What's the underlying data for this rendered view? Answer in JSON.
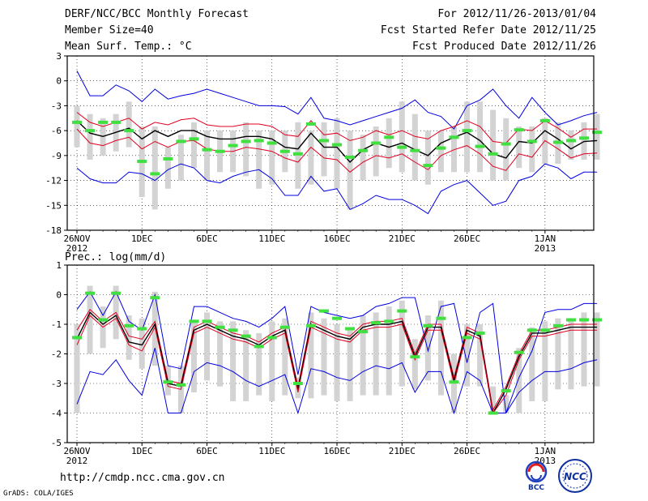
{
  "header": {
    "title": "DERF/NCC/BCC Monthly Forecast",
    "member_size": "Member Size=40",
    "variable": "Mean Surf. Temp.: °C",
    "period": "For 2012/11/26-2013/01/04",
    "started": "Fcst Started Refer Date 2012/11/25",
    "produced": "Fcst Produced Date 2012/11/26"
  },
  "footer": {
    "url": "http://cmdp.ncc.cma.gov.cn",
    "credit": "GrADS: COLA/IGES",
    "logo_left": "BCC",
    "logo_right": "NCC"
  },
  "colors": {
    "mean": "#000000",
    "std": "#e00020",
    "extreme": "#0000e0",
    "box": "#d3d3d3",
    "member": "#40e040",
    "grid": "#000000"
  },
  "chart_data": [
    {
      "type": "line",
      "title": "Mean Surf. Temp.: °C",
      "ylim": [
        -18,
        3
      ],
      "yticks": [
        3,
        0,
        -3,
        -6,
        -9,
        -12,
        -15,
        -18
      ],
      "ytick_labels": [
        "3",
        "0",
        "-3",
        "-6",
        "-9",
        "-12",
        "-15",
        "-18"
      ],
      "xlim": [
        0,
        39
      ],
      "xticks": [
        {
          "x": 0,
          "label": "26NOV",
          "sub": "2012"
        },
        {
          "x": 5,
          "label": "1DEC"
        },
        {
          "x": 10,
          "label": "6DEC"
        },
        {
          "x": 15,
          "label": "11DEC"
        },
        {
          "x": 20,
          "label": "16DEC"
        },
        {
          "x": 25,
          "label": "21DEC"
        },
        {
          "x": 30,
          "label": "26DEC"
        },
        {
          "x": 36,
          "label": "1JAN",
          "sub": "2013"
        }
      ],
      "series": [
        {
          "name": "max",
          "role": "extreme",
          "values": [
            1.2,
            -1.8,
            -1.8,
            -0.5,
            -1.2,
            -2.5,
            -1.0,
            -2.2,
            -1.8,
            -1.5,
            -1.0,
            -1.5,
            -2.0,
            -2.5,
            -3.0,
            -3.0,
            -3.1,
            -4.0,
            -2.0,
            -4.5,
            -4.8,
            -5.3,
            -4.8,
            -4.3,
            -3.8,
            -3.3,
            -2.3,
            -3.8,
            -4.3,
            -5.8,
            -3.0,
            -2.3,
            -1.0,
            -3.0,
            -4.5,
            -2.0,
            -3.8,
            -5.3,
            -4.8,
            -4.2,
            -3.8
          ]
        },
        {
          "name": "mean_plus_std",
          "role": "std",
          "values": [
            -3.8,
            -5.0,
            -5.5,
            -5.0,
            -4.5,
            -5.8,
            -5.0,
            -5.3,
            -4.7,
            -4.5,
            -5.3,
            -5.5,
            -5.5,
            -5.2,
            -5.2,
            -5.5,
            -6.5,
            -6.7,
            -4.8,
            -6.5,
            -6.3,
            -7.2,
            -6.8,
            -6.0,
            -6.5,
            -6.0,
            -6.7,
            -7.0,
            -6.0,
            -5.5,
            -4.8,
            -5.5,
            -7.3,
            -7.5,
            -5.8,
            -6.0,
            -4.8,
            -5.7,
            -6.8,
            -5.8,
            -5.8
          ]
        },
        {
          "name": "mean",
          "role": "mean",
          "values": [
            -4.8,
            -6.3,
            -6.7,
            -6.2,
            -5.7,
            -7.0,
            -6.0,
            -6.7,
            -6.0,
            -6.0,
            -6.7,
            -7.0,
            -7.0,
            -6.7,
            -6.7,
            -7.0,
            -8.0,
            -8.2,
            -6.3,
            -8.0,
            -8.0,
            -9.8,
            -8.3,
            -7.5,
            -8.0,
            -7.5,
            -8.3,
            -9.0,
            -7.5,
            -6.8,
            -6.2,
            -7.2,
            -8.8,
            -9.3,
            -7.3,
            -7.5,
            -6.0,
            -7.0,
            -8.2,
            -7.3,
            -7.2
          ]
        },
        {
          "name": "mean_minus_std",
          "role": "std",
          "values": [
            -5.8,
            -7.5,
            -7.8,
            -7.2,
            -6.8,
            -8.2,
            -7.3,
            -8.0,
            -7.3,
            -7.2,
            -8.2,
            -8.5,
            -8.5,
            -8.0,
            -8.2,
            -8.5,
            -9.3,
            -9.8,
            -8.0,
            -9.3,
            -9.5,
            -11.0,
            -9.8,
            -9.0,
            -9.3,
            -8.8,
            -9.8,
            -10.7,
            -9.0,
            -8.3,
            -7.8,
            -8.8,
            -10.3,
            -10.8,
            -8.8,
            -9.2,
            -7.2,
            -8.2,
            -9.3,
            -8.8,
            -8.7
          ]
        },
        {
          "name": "min",
          "role": "extreme",
          "values": [
            -10.5,
            -11.8,
            -12.3,
            -12.3,
            -11.0,
            -11.2,
            -12.0,
            -10.7,
            -10.0,
            -10.5,
            -12.0,
            -12.3,
            -11.5,
            -11.0,
            -10.7,
            -11.8,
            -13.8,
            -13.8,
            -11.5,
            -13.3,
            -13.0,
            -15.5,
            -14.8,
            -13.8,
            -14.3,
            -14.3,
            -15.0,
            -16.0,
            -13.3,
            -12.5,
            -12.0,
            -13.5,
            -15.0,
            -14.5,
            -12.0,
            -11.5,
            -10.0,
            -10.5,
            -11.8,
            -11.0,
            -11.0
          ]
        }
      ],
      "boxes": [
        [
          -8,
          -3
        ],
        [
          -9.5,
          -4
        ],
        [
          -9,
          -4.5
        ],
        [
          -8.5,
          -4
        ],
        [
          -8,
          -2.5
        ],
        [
          -14,
          -5.5
        ],
        [
          -15.5,
          -5.5
        ],
        [
          -13,
          -8
        ],
        [
          -12,
          -6.5
        ],
        [
          -10.5,
          -5
        ],
        [
          -12,
          -6
        ],
        [
          -11,
          -6
        ],
        [
          -11,
          -6
        ],
        [
          -11.5,
          -5
        ],
        [
          -13,
          -6
        ],
        [
          -12.5,
          -6
        ],
        [
          -11,
          -6
        ],
        [
          -13,
          -5
        ],
        [
          -12.5,
          -6
        ],
        [
          -11.5,
          -5
        ],
        [
          -13,
          -4.5
        ],
        [
          -15.5,
          -6
        ],
        [
          -12,
          -6.5
        ],
        [
          -11.5,
          -5.5
        ],
        [
          -10.5,
          -4.5
        ],
        [
          -11,
          -2.5
        ],
        [
          -12,
          -4
        ],
        [
          -12.5,
          -6
        ],
        [
          -11,
          -6
        ],
        [
          -11,
          -5.5
        ],
        [
          -11,
          -2.5
        ],
        [
          -11,
          -2.5
        ],
        [
          -12,
          -3.5
        ],
        [
          -12,
          -4.5
        ],
        [
          -10.5,
          -5.5
        ],
        [
          -11,
          -5.5
        ],
        [
          -10,
          -4.5
        ],
        [
          -10,
          -5
        ],
        [
          -9.5,
          -6
        ],
        [
          -9.5,
          -5
        ],
        [
          -9.5,
          -4
        ]
      ],
      "members": [
        -5,
        -6,
        -5,
        -5,
        -6,
        -9.7,
        -11.2,
        -9.4,
        -7.3,
        -7,
        -8.3,
        -8.5,
        -7.8,
        -7.3,
        -7.2,
        -7.5,
        -8.5,
        -8.8,
        -5.2,
        -7.2,
        -7.7,
        -9.2,
        -8.4,
        -7.5,
        -6.8,
        -8,
        -8.4,
        -10.2,
        -8.1,
        -6.8,
        -6,
        -7.9,
        -8.8,
        -7.6,
        -5.9,
        -7.3,
        -4.8,
        -7.4,
        -7.2,
        -6.9,
        -6.2
      ]
    },
    {
      "type": "line",
      "title": "Prec.: log(mm/d)",
      "ylim": [
        -5,
        1
      ],
      "yticks": [
        1,
        0,
        -1,
        -2,
        -3,
        -4,
        -5
      ],
      "ytick_labels": [
        "1",
        "0",
        "-1",
        "-2",
        "-3",
        "-4",
        "-5"
      ],
      "xlim": [
        0,
        39
      ],
      "xticks": [
        {
          "x": 0,
          "label": "26NOV",
          "sub": "2012"
        },
        {
          "x": 5,
          "label": "1DEC"
        },
        {
          "x": 10,
          "label": "6DEC"
        },
        {
          "x": 15,
          "label": "11DEC"
        },
        {
          "x": 20,
          "label": "16DEC"
        },
        {
          "x": 25,
          "label": "21DEC"
        },
        {
          "x": 30,
          "label": "26DEC"
        },
        {
          "x": 36,
          "label": "1JAN",
          "sub": "2013"
        }
      ],
      "series": [
        {
          "name": "max",
          "role": "extreme",
          "values": [
            -0.5,
            0.1,
            -0.7,
            0.1,
            -0.9,
            -1.2,
            0.0,
            -2.4,
            -2.5,
            -0.4,
            -0.4,
            -0.6,
            -0.8,
            -0.9,
            -1.1,
            -0.8,
            -0.4,
            -2.7,
            -0.4,
            -0.6,
            -0.7,
            -0.8,
            -0.7,
            -0.4,
            -0.3,
            -0.1,
            -0.1,
            -1.9,
            -0.4,
            -0.3,
            -2.3,
            -0.6,
            -0.3,
            -4.0,
            -2.8,
            -1.9,
            -0.6,
            -0.5,
            -0.5,
            -0.3,
            -0.3
          ]
        },
        {
          "name": "mean_plus_std",
          "role": "std",
          "values": [
            -1.2,
            -0.5,
            -0.9,
            -0.6,
            -1.4,
            -1.5,
            -0.9,
            -2.9,
            -3.0,
            -1.1,
            -0.9,
            -1.1,
            -1.3,
            -1.4,
            -1.6,
            -1.3,
            -1.1,
            -3.1,
            -0.9,
            -1.1,
            -1.3,
            -1.4,
            -1.0,
            -0.9,
            -0.9,
            -0.8,
            -2.0,
            -1.0,
            -1.0,
            -2.8,
            -1.1,
            -1.3,
            -3.9,
            -3.1,
            -2.0,
            -1.2,
            -1.2,
            -1.1,
            -1.0,
            -1.0,
            -1.0
          ]
        },
        {
          "name": "mean",
          "role": "mean",
          "values": [
            -1.5,
            -0.6,
            -1.0,
            -0.7,
            -1.6,
            -1.7,
            -1.0,
            -3.0,
            -3.1,
            -1.2,
            -1.0,
            -1.2,
            -1.4,
            -1.5,
            -1.7,
            -1.4,
            -1.2,
            -3.2,
            -1.0,
            -1.2,
            -1.4,
            -1.5,
            -1.1,
            -1.0,
            -1.0,
            -0.9,
            -2.1,
            -1.1,
            -1.1,
            -2.9,
            -1.2,
            -1.4,
            -4.0,
            -3.2,
            -2.1,
            -1.3,
            -1.3,
            -1.2,
            -1.1,
            -1.1,
            -1.1
          ]
        },
        {
          "name": "mean_minus_std",
          "role": "std",
          "values": [
            -1.7,
            -0.7,
            -1.1,
            -0.8,
            -1.7,
            -1.9,
            -1.1,
            -3.1,
            -3.2,
            -1.3,
            -1.1,
            -1.3,
            -1.5,
            -1.6,
            -1.8,
            -1.5,
            -1.3,
            -3.3,
            -1.1,
            -1.3,
            -1.5,
            -1.6,
            -1.2,
            -1.1,
            -1.1,
            -1.0,
            -2.2,
            -1.2,
            -1.2,
            -3.0,
            -1.3,
            -1.5,
            -4.0,
            -3.4,
            -2.2,
            -1.4,
            -1.4,
            -1.3,
            -1.2,
            -1.2,
            -1.2
          ]
        },
        {
          "name": "min",
          "role": "extreme",
          "values": [
            -3.7,
            -2.6,
            -2.7,
            -2.2,
            -2.9,
            -3.4,
            -1.8,
            -4.0,
            -4.0,
            -2.6,
            -2.3,
            -2.4,
            -2.6,
            -2.9,
            -3.1,
            -2.9,
            -2.7,
            -4.0,
            -2.5,
            -2.6,
            -2.8,
            -2.9,
            -2.6,
            -2.4,
            -2.5,
            -2.3,
            -3.3,
            -2.6,
            -2.6,
            -4.0,
            -2.6,
            -2.9,
            -4.0,
            -4.0,
            -3.3,
            -2.9,
            -2.6,
            -2.6,
            -2.5,
            -2.3,
            -2.2
          ]
        }
      ],
      "boxes": [
        [
          -4,
          -1
        ],
        [
          -2,
          0.3
        ],
        [
          -1.8,
          -0.4
        ],
        [
          -1.5,
          0.3
        ],
        [
          -2.2,
          -0.7
        ],
        [
          -2.5,
          -0.8
        ],
        [
          -2.4,
          0.1
        ],
        [
          -3.4,
          -2.4
        ],
        [
          -4,
          -2.4
        ],
        [
          -3.3,
          -0.9
        ],
        [
          -2.9,
          -0.6
        ],
        [
          -3.1,
          -0.9
        ],
        [
          -3.6,
          -0.9
        ],
        [
          -3.6,
          -1.2
        ],
        [
          -3.4,
          -1.3
        ],
        [
          -3.6,
          -0.9
        ],
        [
          -3.4,
          -0.8
        ],
        [
          -3.5,
          -2.8
        ],
        [
          -3.5,
          -0.6
        ],
        [
          -3.4,
          -0.8
        ],
        [
          -3.6,
          -1
        ],
        [
          -3.6,
          -1.2
        ],
        [
          -3.4,
          -0.7
        ],
        [
          -3.4,
          -0.6
        ],
        [
          -3.4,
          -0.4
        ],
        [
          -3.1,
          -0.2
        ],
        [
          -3.2,
          -1.5
        ],
        [
          -2.9,
          -0.7
        ],
        [
          -3.4,
          -0.2
        ],
        [
          -4,
          -2
        ],
        [
          -3.1,
          -1
        ],
        [
          -3.1,
          -1
        ],
        [
          -4,
          -3.1
        ],
        [
          -4,
          -3.4
        ],
        [
          -4,
          -1.8
        ],
        [
          -3.6,
          -1.1
        ],
        [
          -3.6,
          -0.9
        ],
        [
          -3.2,
          -0.8
        ],
        [
          -3.2,
          -0.9
        ],
        [
          -3.1,
          -0.6
        ],
        [
          -3.1,
          -0.6
        ]
      ],
      "members": [
        -1.45,
        0.05,
        -0.85,
        0.05,
        -1.05,
        -1.15,
        -0.1,
        -2.95,
        -3.05,
        -0.9,
        -0.9,
        -1.1,
        -1.2,
        -1.4,
        -1.75,
        -1.45,
        -1.1,
        -3,
        -1.05,
        -0.55,
        -0.8,
        -1.15,
        -1.25,
        -0.95,
        -0.9,
        -0.55,
        -2.1,
        -1.05,
        -0.8,
        -2.95,
        -1.45,
        -1.3,
        -4,
        -3.25,
        -1.95,
        -1.2,
        -1.2,
        -1.05,
        -0.85,
        -0.85,
        -0.85
      ]
    }
  ]
}
